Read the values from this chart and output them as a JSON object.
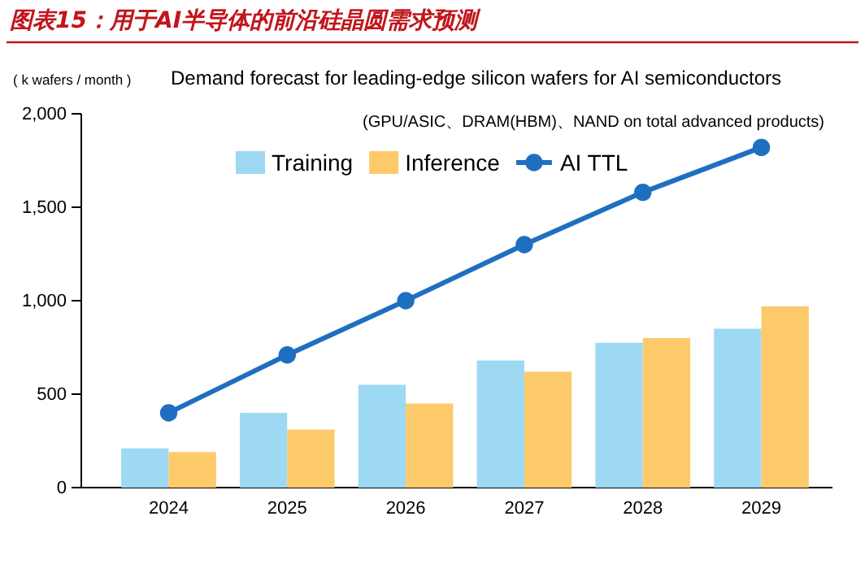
{
  "chart_data": {
    "type": "bar",
    "title": "图表15：用于AI半导体的前沿硅晶圆需求预测",
    "subtitle": "Demand forecast for leading-edge silicon wafers for AI semiconductors",
    "ylabel": "( k wafers / month )",
    "annotations": [
      "(GPU/ASIC、DRAM(HBM)、NAND  on total advanced products)"
    ],
    "categories": [
      "2024",
      "2025",
      "2026",
      "2027",
      "2028",
      "2029"
    ],
    "series": [
      {
        "name": "Training",
        "color": "#9dd9f3",
        "values": [
          210,
          400,
          550,
          680,
          775,
          850
        ]
      },
      {
        "name": "Inference",
        "color": "#fdca6b",
        "values": [
          190,
          310,
          450,
          620,
          800,
          970
        ]
      },
      {
        "name": "AI TTL",
        "type": "line",
        "color": "#1f6fc1",
        "values": [
          400,
          710,
          1000,
          1300,
          1580,
          1820
        ]
      }
    ],
    "ylim": [
      0,
      2000
    ],
    "yticks": [
      0,
      500,
      {
        "value": 1000,
        "label": "1,000"
      },
      {
        "value": 1500,
        "label": "1,500"
      },
      {
        "value": 2000,
        "label": "2,000"
      }
    ],
    "legend": "top left",
    "marker": "circle",
    "line_style": "solid"
  }
}
